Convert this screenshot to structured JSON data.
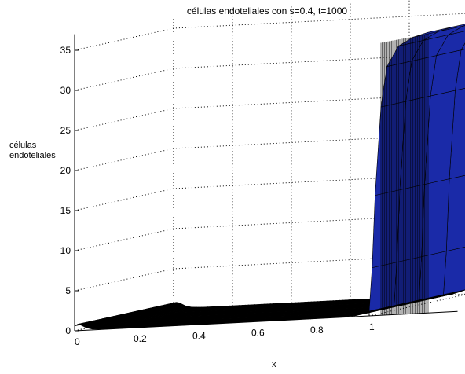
{
  "chart_data": {
    "type": "surface",
    "title": "células endoteliales con s=0.4, t=1000",
    "xlabel": "x",
    "zlabel_lines": [
      "células",
      "endoteliales"
    ],
    "x_ticks": [
      "0",
      "0.2",
      "0.4",
      "0.6",
      "0.8",
      "1"
    ],
    "z_ticks": [
      "0",
      "5",
      "10",
      "15",
      "20",
      "25",
      "30",
      "35"
    ],
    "xlim": [
      0,
      1.2
    ],
    "zlim": [
      0,
      37
    ],
    "grid": true,
    "colors": {
      "surface_low": "#000000",
      "surface_high": "#1a2aa8",
      "surface_edge": "#000000",
      "grid": "#000000"
    },
    "series": [
      {
        "x": [
          0,
          0.01,
          0.02,
          0.04,
          0.06,
          0.08,
          0.1,
          0.2,
          0.4,
          0.6,
          0.8,
          0.9,
          0.95,
          1.0,
          1.01,
          1.02,
          1.04,
          1.06,
          1.1,
          1.15,
          1.2
        ],
        "z": [
          0.6,
          0.8,
          0.7,
          0.3,
          0.1,
          0.05,
          0.02,
          0.01,
          0.01,
          0.01,
          0.01,
          0.02,
          0.1,
          0.6,
          6.0,
          15.0,
          26.0,
          31.0,
          33.5,
          34.5,
          35.0
        ]
      }
    ]
  }
}
